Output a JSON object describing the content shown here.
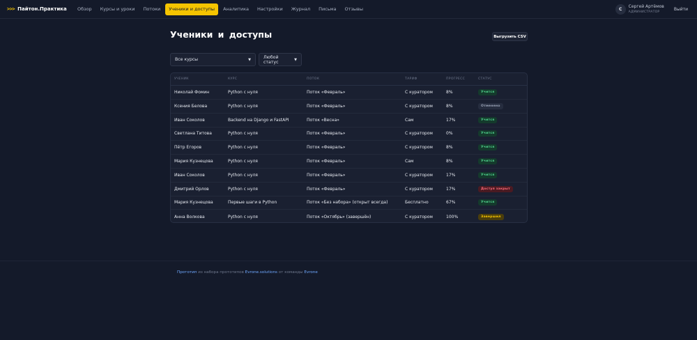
{
  "header": {
    "logo_mark": ">>>",
    "logo_text": "Пайтон.Практика",
    "nav": [
      {
        "label": "Обзор",
        "active": false
      },
      {
        "label": "Курсы и уроки",
        "active": false
      },
      {
        "label": "Потоки",
        "active": false
      },
      {
        "label": "Ученики и доступы",
        "active": true
      },
      {
        "label": "Аналитика",
        "active": false
      },
      {
        "label": "Настройки",
        "active": false
      },
      {
        "label": "Журнал",
        "active": false
      },
      {
        "label": "Письма",
        "active": false
      },
      {
        "label": "Отзывы",
        "active": false
      }
    ],
    "user": {
      "initial": "С",
      "name": "Сергей Артёмов",
      "role": "администратор"
    },
    "logout_label": "Выйти"
  },
  "page": {
    "title": "Ученики и доступы",
    "export_label": "Выгрузить CSV"
  },
  "filters": {
    "course": "Все курсы",
    "status": "Любой статус"
  },
  "table": {
    "columns": [
      "Ученик",
      "Курс",
      "Поток",
      "Тариф",
      "Прогресс",
      "Статус"
    ],
    "rows": [
      {
        "student": "Николай Фомин",
        "course": "Python с нуля",
        "stream": "Поток «Февраль»",
        "tariff": "С куратором",
        "progress": "8%",
        "status": "Учится",
        "status_kind": "learning"
      },
      {
        "student": "Ксения Белова",
        "course": "Python с нуля",
        "stream": "Поток «Февраль»",
        "tariff": "С куратором",
        "progress": "8%",
        "status": "Отменено",
        "status_kind": "cancelled"
      },
      {
        "student": "Иван Соколов",
        "course": "Backend на Django и FastAPI",
        "stream": "Поток «Весна»",
        "tariff": "Сам",
        "progress": "17%",
        "status": "Учится",
        "status_kind": "learning"
      },
      {
        "student": "Светлана Титова",
        "course": "Python с нуля",
        "stream": "Поток «Февраль»",
        "tariff": "С куратором",
        "progress": "0%",
        "status": "Учится",
        "status_kind": "learning"
      },
      {
        "student": "Пётр Егоров",
        "course": "Python с нуля",
        "stream": "Поток «Февраль»",
        "tariff": "С куратором",
        "progress": "8%",
        "status": "Учится",
        "status_kind": "learning"
      },
      {
        "student": "Мария Кузнецова",
        "course": "Python с нуля",
        "stream": "Поток «Февраль»",
        "tariff": "Сам",
        "progress": "8%",
        "status": "Учится",
        "status_kind": "learning"
      },
      {
        "student": "Иван Соколов",
        "course": "Python с нуля",
        "stream": "Поток «Февраль»",
        "tariff": "С куратором",
        "progress": "17%",
        "status": "Учится",
        "status_kind": "learning"
      },
      {
        "student": "Дмитрий Орлов",
        "course": "Python с нуля",
        "stream": "Поток «Февраль»",
        "tariff": "С куратором",
        "progress": "17%",
        "status": "Доступ закрыт",
        "status_kind": "closed"
      },
      {
        "student": "Мария Кузнецова",
        "course": "Первые шаги в Python",
        "stream": "Поток «Без набора» (открыт всегда)",
        "tariff": "Бесплатно",
        "progress": "67%",
        "status": "Учится",
        "status_kind": "learning"
      },
      {
        "student": "Анна Волкова",
        "course": "Python с нуля",
        "stream": "Поток «Октябрь» (завершён)",
        "tariff": "С куратором",
        "progress": "100%",
        "status": "Завершил",
        "status_kind": "finished"
      }
    ]
  },
  "status_colors": {
    "learning": {
      "bg": "#143a2c",
      "fg": "#4fd18b"
    },
    "cancelled": {
      "bg": "#262d3f",
      "fg": "#9aa3b6"
    },
    "closed": {
      "bg": "#4a1a22",
      "fg": "#ff6b7a"
    },
    "finished": {
      "bg": "#4a3d0c",
      "fg": "#f5c400"
    }
  },
  "footer": {
    "link1": "Прототип",
    "text1": " из набора прототипов ",
    "link2": "Evrone.solutions",
    "text2": " от команды ",
    "link3": "Evrone"
  }
}
